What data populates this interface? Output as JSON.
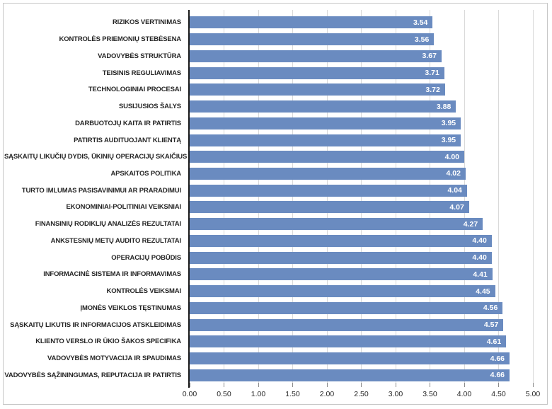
{
  "chart_data": {
    "type": "bar",
    "orientation": "horizontal",
    "title": "",
    "xlabel": "",
    "ylabel": "",
    "xlim": [
      0,
      5
    ],
    "x_tick_step": 0.5,
    "x_ticks": [
      "0.00",
      "0.50",
      "1.00",
      "1.50",
      "2.00",
      "2.50",
      "3.00",
      "3.50",
      "4.00",
      "4.50",
      "5.00"
    ],
    "grid": true,
    "legend": false,
    "value_format": "0.00",
    "categories": [
      "RIZIKOS VERTINIMAS",
      "KONTROLĖS PRIEMONIŲ STEBĖSENA",
      "VADOVYBĖS STRUKTŪRA",
      "TEISINIS REGULIAVIMAS",
      "TECHNOLOGINIAI PROCESAI",
      "SUSIJUSIOS ŠALYS",
      "DARBUOTOJŲ KAITA IR PATIRTIS",
      "PATIRTIS AUDITUOJANT KLIENTĄ",
      "SĄSKAITŲ LIKUČIŲ DYDIS, ŪKINIŲ OPERACIJŲ SKAIČIUS",
      "APSKAITOS POLITIKA",
      "TURTO IMLUMAS PASISAVINIMUI AR PRARADIMUI",
      "EKONOMINIAI-POLITINIAI VEIKSNIAI",
      "FINANSINIŲ RODIKLIŲ ANALIZĖS REZULTATAI",
      "ANKSTESNIŲ METŲ AUDITO REZULTATAI",
      "OPERACIJŲ POBŪDIS",
      "INFORMACINĖ SISTEMA IR INFORMAVIMAS",
      "KONTROLĖS VEIKSMAI",
      "ĮMONĖS VEIKLOS TĘSTINUMAS",
      "SĄSKAITŲ LIKUTIS IR INFORMACIJOS ATSKLEIDIMAS",
      "KLIENTO VERSLO IR ŪKIO ŠAKOS SPECIFIKA",
      "VADOVYBĖS MOTYVACIJA IR SPAUDIMAS",
      "VADOVYBĖS SĄŽININGUMAS, REPUTACIJA IR PATIRTIS"
    ],
    "values": [
      3.54,
      3.56,
      3.67,
      3.71,
      3.72,
      3.88,
      3.95,
      3.95,
      4.0,
      4.02,
      4.04,
      4.07,
      4.27,
      4.4,
      4.4,
      4.41,
      4.45,
      4.56,
      4.57,
      4.61,
      4.66,
      4.66
    ],
    "colors": {
      "bar": "#6A8BC0",
      "value_label": "#FFFFFF",
      "gridline": "#D9D9D9",
      "axis_line": "#1A1A1A",
      "tick": "#8C8C8C",
      "category_label": "#262626",
      "tick_label": "#262626",
      "frame_border": "#C6C6C6",
      "background": "#FFFFFF"
    }
  }
}
